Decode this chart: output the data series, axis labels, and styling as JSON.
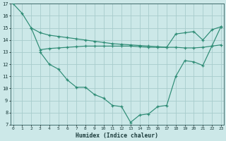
{
  "line_a_x": [
    0,
    1,
    2,
    3,
    4,
    5,
    6,
    7,
    8,
    9,
    10,
    11,
    12,
    13,
    14,
    15,
    16,
    17,
    18,
    19,
    20,
    21,
    22,
    23
  ],
  "line_a_y": [
    17.0,
    16.2,
    15.0,
    14.6,
    14.4,
    14.3,
    14.2,
    14.1,
    14.0,
    13.9,
    13.8,
    13.7,
    13.65,
    13.6,
    13.55,
    13.5,
    13.45,
    13.4,
    13.4,
    13.35,
    13.35,
    13.4,
    13.5,
    13.6
  ],
  "line_b_x": [
    2,
    3,
    4,
    5,
    6,
    7,
    8,
    9,
    10,
    11,
    12,
    13,
    14,
    15,
    16,
    17,
    18,
    19,
    20,
    21,
    22,
    23
  ],
  "line_b_y": [
    15.0,
    13.2,
    13.3,
    13.35,
    13.4,
    13.45,
    13.5,
    13.5,
    13.5,
    13.5,
    13.5,
    13.5,
    13.45,
    13.4,
    13.4,
    13.4,
    14.5,
    14.6,
    14.7,
    14.0,
    14.85,
    15.1
  ],
  "line_c_x": [
    3,
    4,
    5,
    6,
    7,
    8,
    9,
    10,
    11,
    12,
    13,
    14,
    15,
    16,
    17,
    18,
    19,
    20,
    21,
    22,
    23
  ],
  "line_c_y": [
    13.0,
    12.0,
    11.6,
    10.7,
    10.1,
    10.1,
    9.5,
    9.2,
    8.6,
    8.5,
    7.2,
    7.8,
    7.9,
    8.5,
    8.6,
    11.0,
    12.3,
    12.2,
    11.9,
    13.5,
    15.1
  ],
  "color": "#2d8b74",
  "bg_color": "#cce8e8",
  "grid_color": "#a8cccc",
  "xlabel": "Humidex (Indice chaleur)",
  "ylim": [
    7,
    17
  ],
  "xlim_min": -0.3,
  "xlim_max": 23.3,
  "yticks": [
    7,
    8,
    9,
    10,
    11,
    12,
    13,
    14,
    15,
    16,
    17
  ],
  "xticks": [
    0,
    1,
    2,
    3,
    4,
    5,
    6,
    7,
    8,
    9,
    10,
    11,
    12,
    13,
    14,
    15,
    16,
    17,
    18,
    19,
    20,
    21,
    22,
    23
  ]
}
